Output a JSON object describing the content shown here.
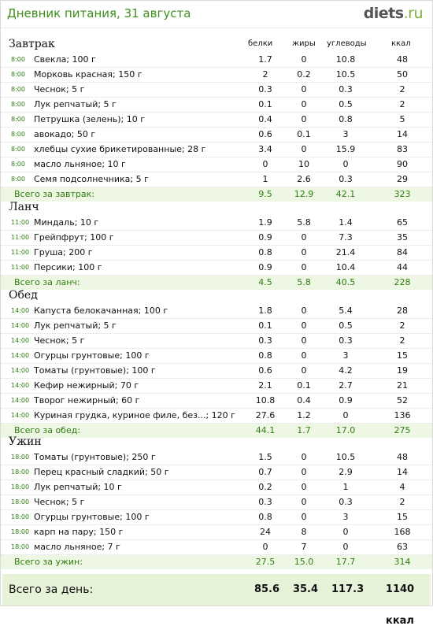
{
  "header": {
    "title": "Дневник питания, 31 августа",
    "logo_main": "diets",
    "logo_domain": ".ru"
  },
  "columns": [
    "белки",
    "жиры",
    "углеводы",
    "ккал"
  ],
  "meals": [
    {
      "title": "Завтрак",
      "items": [
        {
          "time": "8:00",
          "name": "Свекла; 100 г",
          "p": "1.7",
          "f": "0",
          "c": "10.8",
          "k": "48"
        },
        {
          "time": "8:00",
          "name": "Морковь красная; 150 г",
          "p": "2",
          "f": "0.2",
          "c": "10.5",
          "k": "50"
        },
        {
          "time": "8:00",
          "name": "Чеснок; 5 г",
          "p": "0.3",
          "f": "0",
          "c": "0.3",
          "k": "2"
        },
        {
          "time": "8:00",
          "name": "Лук репчатый; 5 г",
          "p": "0.1",
          "f": "0",
          "c": "0.5",
          "k": "2"
        },
        {
          "time": "8:00",
          "name": "Петрушка (зелень); 10 г",
          "p": "0.4",
          "f": "0",
          "c": "0.8",
          "k": "5"
        },
        {
          "time": "8:00",
          "name": "авокадо; 50 г",
          "p": "0.6",
          "f": "0.1",
          "c": "3",
          "k": "14"
        },
        {
          "time": "8:00",
          "name": "хлебцы сухие брикетированные; 28 г",
          "p": "3.4",
          "f": "0",
          "c": "15.9",
          "k": "83"
        },
        {
          "time": "8:00",
          "name": "масло льняное; 10 г",
          "p": "0",
          "f": "10",
          "c": "0",
          "k": "90"
        },
        {
          "time": "8:00",
          "name": "Семя подсолнечника; 5 г",
          "p": "1",
          "f": "2.6",
          "c": "0.3",
          "k": "29"
        }
      ],
      "total": {
        "label": "Всего за завтрак:",
        "p": "9.5",
        "f": "12.9",
        "c": "42.1",
        "k": "323"
      }
    },
    {
      "title": "Ланч",
      "items": [
        {
          "time": "11:00",
          "name": "Миндаль; 10 г",
          "p": "1.9",
          "f": "5.8",
          "c": "1.4",
          "k": "65"
        },
        {
          "time": "11:00",
          "name": "Грейпфрут; 100 г",
          "p": "0.9",
          "f": "0",
          "c": "7.3",
          "k": "35"
        },
        {
          "time": "11:00",
          "name": "Груша; 200 г",
          "p": "0.8",
          "f": "0",
          "c": "21.4",
          "k": "84"
        },
        {
          "time": "11:00",
          "name": "Персики; 100 г",
          "p": "0.9",
          "f": "0",
          "c": "10.4",
          "k": "44"
        }
      ],
      "total": {
        "label": "Всего за ланч:",
        "p": "4.5",
        "f": "5.8",
        "c": "40.5",
        "k": "228"
      }
    },
    {
      "title": "Обед",
      "items": [
        {
          "time": "14:00",
          "name": "Капуста белокачанная; 100 г",
          "p": "1.8",
          "f": "0",
          "c": "5.4",
          "k": "28"
        },
        {
          "time": "14:00",
          "name": "Лук репчатый; 5 г",
          "p": "0.1",
          "f": "0",
          "c": "0.5",
          "k": "2"
        },
        {
          "time": "14:00",
          "name": "Чеснок; 5 г",
          "p": "0.3",
          "f": "0",
          "c": "0.3",
          "k": "2"
        },
        {
          "time": "14:00",
          "name": "Огурцы грунтовые; 100 г",
          "p": "0.8",
          "f": "0",
          "c": "3",
          "k": "15"
        },
        {
          "time": "14:00",
          "name": "Томаты (грунтовые); 100 г",
          "p": "0.6",
          "f": "0",
          "c": "4.2",
          "k": "19"
        },
        {
          "time": "14:00",
          "name": "Кефир нежирный; 70 г",
          "p": "2.1",
          "f": "0.1",
          "c": "2.7",
          "k": "21"
        },
        {
          "time": "14:00",
          "name": "Творог нежирный; 60 г",
          "p": "10.8",
          "f": "0.4",
          "c": "0.9",
          "k": "52"
        },
        {
          "time": "14:00",
          "name": "Куриная грудка, куриное филе, без...; 120 г",
          "p": "27.6",
          "f": "1.2",
          "c": "0",
          "k": "136"
        }
      ],
      "total": {
        "label": "Всего за обед:",
        "p": "44.1",
        "f": "1.7",
        "c": "17.0",
        "k": "275"
      }
    },
    {
      "title": "Ужин",
      "items": [
        {
          "time": "18:00",
          "name": "Томаты (грунтовые); 250 г",
          "p": "1.5",
          "f": "0",
          "c": "10.5",
          "k": "48"
        },
        {
          "time": "18:00",
          "name": "Перец красный сладкий; 50 г",
          "p": "0.7",
          "f": "0",
          "c": "2.9",
          "k": "14"
        },
        {
          "time": "18:00",
          "name": "Лук репчатый; 10 г",
          "p": "0.2",
          "f": "0",
          "c": "1",
          "k": "4"
        },
        {
          "time": "18:00",
          "name": "Чеснок; 5 г",
          "p": "0.3",
          "f": "0",
          "c": "0.3",
          "k": "2"
        },
        {
          "time": "18:00",
          "name": "Огурцы грунтовые; 100 г",
          "p": "0.8",
          "f": "0",
          "c": "3",
          "k": "15"
        },
        {
          "time": "18:00",
          "name": "карп на пару; 150 г",
          "p": "24",
          "f": "8",
          "c": "0",
          "k": "168"
        },
        {
          "time": "18:00",
          "name": "масло льняное; 7 г",
          "p": "0",
          "f": "7",
          "c": "0",
          "k": "63"
        }
      ],
      "total": {
        "label": "Всего за ужин:",
        "p": "27.5",
        "f": "15.0",
        "c": "17.7",
        "k": "314"
      }
    }
  ],
  "day_total": {
    "label": "Всего за день:",
    "p": "85.6",
    "f": "35.4",
    "c": "117.3",
    "k": "1140 ккал"
  }
}
